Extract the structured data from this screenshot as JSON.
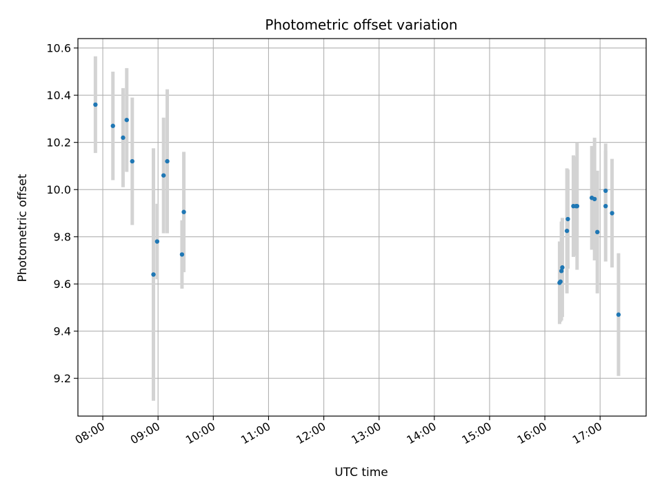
{
  "chart_data": {
    "type": "scatter",
    "title": "Photometric offset variation",
    "xlabel": "UTC time",
    "ylabel": "Photometric offset",
    "x_type": "time",
    "xlim": [
      "07:33",
      "17:50"
    ],
    "ylim": [
      9.04,
      10.64
    ],
    "x_ticks": [
      "08:00",
      "09:00",
      "10:00",
      "11:00",
      "12:00",
      "13:00",
      "14:00",
      "15:00",
      "16:00",
      "17:00"
    ],
    "y_ticks": [
      9.2,
      9.4,
      9.6,
      9.8,
      10.0,
      10.2,
      10.4,
      10.6
    ],
    "grid": true,
    "legend": false,
    "colors": {
      "points": "#1f77b4",
      "errorbars": "#d3d3d3",
      "grid": "#b0b0b0"
    },
    "series": [
      {
        "points": [
          {
            "x": "07:52",
            "y": 10.36,
            "err": 0.205
          },
          {
            "x": "08:11",
            "y": 10.27,
            "err": 0.23
          },
          {
            "x": "08:22",
            "y": 10.22,
            "err": 0.21
          },
          {
            "x": "08:26",
            "y": 10.295,
            "err": 0.22
          },
          {
            "x": "08:32",
            "y": 10.12,
            "err": 0.27
          },
          {
            "x": "08:55",
            "y": 9.64,
            "err": 0.535
          },
          {
            "x": "08:59",
            "y": 9.78,
            "err": 0.16
          },
          {
            "x": "09:06",
            "y": 10.06,
            "err": 0.245
          },
          {
            "x": "09:10",
            "y": 10.12,
            "err": 0.305
          },
          {
            "x": "09:26",
            "y": 9.725,
            "err": 0.145
          },
          {
            "x": "09:28",
            "y": 9.905,
            "err": 0.255
          },
          {
            "x": "16:16",
            "y": 9.605,
            "err": 0.175
          },
          {
            "x": "16:17",
            "y": 9.61,
            "err": 0.17
          },
          {
            "x": "16:18",
            "y": 9.655,
            "err": 0.21
          },
          {
            "x": "16:19",
            "y": 9.67,
            "err": 0.21
          },
          {
            "x": "16:24",
            "y": 9.825,
            "err": 0.265
          },
          {
            "x": "16:25",
            "y": 9.875,
            "err": 0.21
          },
          {
            "x": "16:31",
            "y": 9.93,
            "err": 0.215
          },
          {
            "x": "16:34",
            "y": 9.93,
            "err": 0.21
          },
          {
            "x": "16:35",
            "y": 9.93,
            "err": 0.27
          },
          {
            "x": "16:51",
            "y": 9.965,
            "err": 0.22
          },
          {
            "x": "16:54",
            "y": 9.96,
            "err": 0.26
          },
          {
            "x": "16:57",
            "y": 9.82,
            "err": 0.26
          },
          {
            "x": "17:06",
            "y": 9.995,
            "err": 0.2
          },
          {
            "x": "17:06",
            "y": 9.93,
            "err": 0.235
          },
          {
            "x": "17:13",
            "y": 9.9,
            "err": 0.23
          },
          {
            "x": "17:20",
            "y": 9.47,
            "err": 0.26
          }
        ]
      }
    ]
  }
}
